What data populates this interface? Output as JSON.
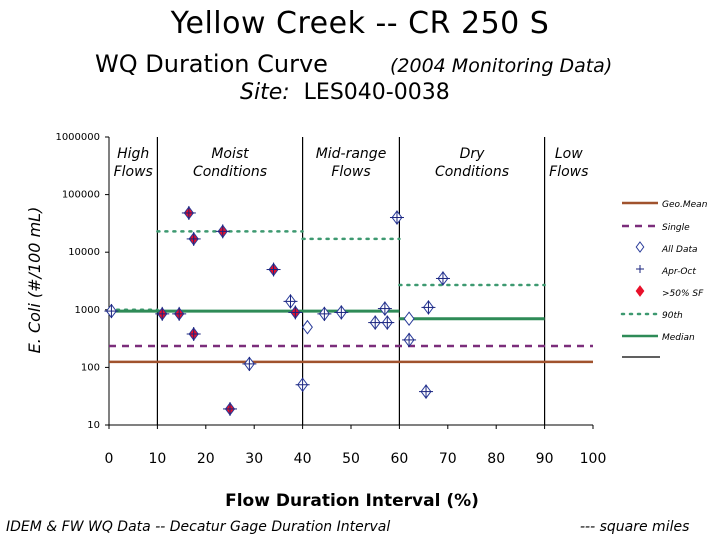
{
  "page": {
    "title_line1": "Yellow Creek -- CR 250 S",
    "title_line2": "WQ Duration Curve",
    "title_line2_sub": "(2004 Monitoring Data)",
    "site_label": "Site:",
    "site_id": "LES040-0038",
    "footer_left": "IDEM & FW WQ Data -- Decatur Gage Duration Interval",
    "footer_right": "--- square miles"
  },
  "colors": {
    "geo_mean": "#a0522d",
    "single": "#7b2d7b",
    "all_data": "#2a3c9a",
    "apr_oct": "#1a237e",
    "gt50_sf": "#e8102a",
    "p90": "#3d9970",
    "median": "#2e8b57",
    "axes": "#000000"
  },
  "chart_data": {
    "type": "scatter",
    "xlabel": "Flow Duration Interval (%)",
    "ylabel": "E. Coli (#/100 mL)",
    "xlim": [
      0,
      100
    ],
    "ylim": [
      10,
      1000000
    ],
    "y_scale": "log",
    "x_ticks": [
      "0",
      "10",
      "20",
      "30",
      "40",
      "50",
      "60",
      "70",
      "80",
      "90",
      "100"
    ],
    "y_ticks": [
      "10",
      "100",
      "1000",
      "10000",
      "100000",
      "1000000"
    ],
    "zone_boundaries": [
      10,
      40,
      60,
      90
    ],
    "zones": [
      {
        "label_line1": "High",
        "label_line2": "Flows",
        "x_center": 5
      },
      {
        "label_line1": "Moist",
        "label_line2": "Conditions",
        "x_center": 25
      },
      {
        "label_line1": "Mid-range",
        "label_line2": "Flows",
        "x_center": 50
      },
      {
        "label_line1": "Dry",
        "label_line2": "Conditions",
        "x_center": 75
      },
      {
        "label_line1": "Low",
        "label_line2": "Flows",
        "x_center": 95
      }
    ],
    "legend": [
      {
        "label": "Geo.Mean",
        "kind": "line",
        "color": "#a0522d",
        "dash": "solid"
      },
      {
        "label": "Single",
        "kind": "line",
        "color": "#7b2d7b",
        "dash": "dash"
      },
      {
        "label": "All Data",
        "kind": "marker",
        "marker": "diamond-open",
        "color": "#2a3c9a"
      },
      {
        "label": "Apr-Oct",
        "kind": "marker",
        "marker": "plus",
        "color": "#1a237e"
      },
      {
        "label": ">50% SF",
        "kind": "marker",
        "marker": "diamond-filled",
        "color": "#e8102a"
      },
      {
        "label": "90th",
        "kind": "line",
        "color": "#3d9970",
        "dash": "dot"
      },
      {
        "label": "Median",
        "kind": "line",
        "color": "#2e8b57",
        "dash": "solid"
      }
    ],
    "legend_position": "right",
    "geo_mean_value": 125,
    "single_sample_value": 235,
    "percentile_90": [
      {
        "x_start": 0,
        "x_end": 10,
        "value": 1000
      },
      {
        "x_start": 10,
        "x_end": 40,
        "value": 23000
      },
      {
        "x_start": 40,
        "x_end": 60,
        "value": 17000
      },
      {
        "x_start": 60,
        "x_end": 90,
        "value": 2700
      }
    ],
    "median": [
      {
        "x_start": 0,
        "x_end": 60,
        "value": 950
      },
      {
        "x_start": 60,
        "x_end": 90,
        "value": 700
      }
    ],
    "points": [
      {
        "x": 0.5,
        "y": 950,
        "group": "all",
        "aproct": true
      },
      {
        "x": 11,
        "y": 850,
        "group": "gt50"
      },
      {
        "x": 14.5,
        "y": 850,
        "group": "gt50"
      },
      {
        "x": 16.5,
        "y": 48000,
        "group": "gt50"
      },
      {
        "x": 17.5,
        "y": 17000,
        "group": "gt50"
      },
      {
        "x": 17.5,
        "y": 380,
        "group": "gt50"
      },
      {
        "x": 23.5,
        "y": 23000,
        "group": "gt50"
      },
      {
        "x": 25,
        "y": 19,
        "group": "gt50"
      },
      {
        "x": 29,
        "y": 115,
        "group": "all",
        "aproct": true
      },
      {
        "x": 34,
        "y": 5000,
        "group": "gt50"
      },
      {
        "x": 37.5,
        "y": 1400,
        "group": "all",
        "aproct": true
      },
      {
        "x": 38.5,
        "y": 900,
        "group": "gt50"
      },
      {
        "x": 40,
        "y": 50,
        "group": "all",
        "aproct": true
      },
      {
        "x": 41,
        "y": 500,
        "group": "all",
        "aproct": false
      },
      {
        "x": 44.5,
        "y": 850,
        "group": "all",
        "aproct": true
      },
      {
        "x": 48,
        "y": 900,
        "group": "all",
        "aproct": true
      },
      {
        "x": 55,
        "y": 600,
        "group": "all",
        "aproct": true
      },
      {
        "x": 57,
        "y": 1050,
        "group": "all",
        "aproct": true
      },
      {
        "x": 57.5,
        "y": 600,
        "group": "all",
        "aproct": true
      },
      {
        "x": 59.5,
        "y": 40000,
        "group": "all",
        "aproct": true
      },
      {
        "x": 62,
        "y": 700,
        "group": "all",
        "aproct": false
      },
      {
        "x": 62,
        "y": 300,
        "group": "all",
        "aproct": true
      },
      {
        "x": 65.5,
        "y": 38,
        "group": "all",
        "aproct": true
      },
      {
        "x": 66,
        "y": 1100,
        "group": "all",
        "aproct": true
      },
      {
        "x": 69,
        "y": 3500,
        "group": "all",
        "aproct": true
      }
    ]
  }
}
